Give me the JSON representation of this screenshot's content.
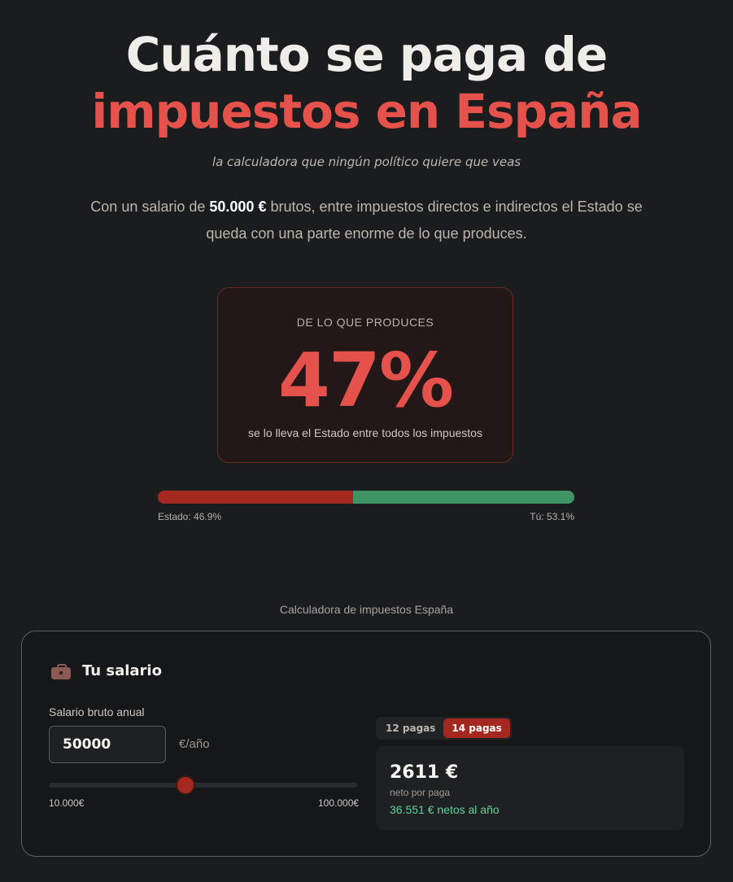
{
  "hero": {
    "title_line1": "Cuánto se paga de",
    "title_line2": "impuestos en España",
    "subtitle": "la calculadora que ningún político quiere que veas",
    "intro_prefix": "Con un salario de ",
    "intro_salary": "50.000 €",
    "intro_suffix": " brutos, entre impuestos directos e indirectos el Estado se queda con una parte enorme de lo que produces."
  },
  "stat": {
    "label": "DE LO QUE PRODUCES",
    "value": "47%",
    "caption": "se lo lleva el Estado entre todos los impuestos"
  },
  "split_bar": {
    "state_fraction": 0.469,
    "state_label": "Estado: 46.9%",
    "you_label": "Tú: 53.1%",
    "state_color": "#a4281f",
    "you_color": "#3f9364"
  },
  "section_caption": "Calculadora de impuestos España",
  "calculator": {
    "icon": "briefcase-icon",
    "title": "Tu salario",
    "field_label": "Salario bruto anual",
    "salary_value": "50000",
    "unit": "€/año",
    "slider": {
      "min_label": "10.000€",
      "max_label": "100.000€",
      "min": 10000,
      "max": 100000,
      "value": 50000
    },
    "payments_toggle": {
      "option_12": "12 pagas",
      "option_14": "14 pagas",
      "selected": "14 pagas"
    },
    "result": {
      "amount": "2611 €",
      "sub_label": "neto por paga",
      "annual": "36.551 € netos al año"
    }
  }
}
